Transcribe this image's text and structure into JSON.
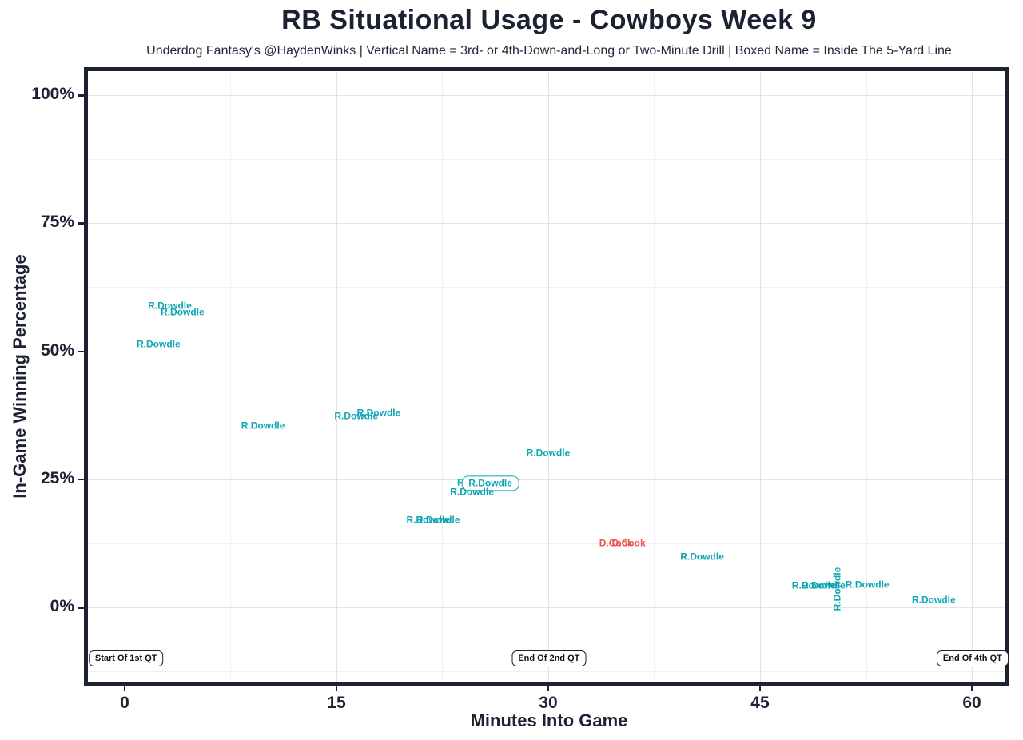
{
  "chart_data": {
    "type": "scatter",
    "title": "RB Situational Usage - Cowboys Week 9",
    "subtitle": "Underdog Fantasy's @HaydenWinks | Vertical Name = 3rd- or 4th-Down-and-Long or Two-Minute Drill | Boxed Name = Inside The 5-Yard Line",
    "xlabel": "Minutes Into Game",
    "ylabel": "In-Game Winning Percentage",
    "legend_notes": {
      "vertical_name_meaning": "3rd- or 4th-Down-and-Long or Two-Minute Drill",
      "boxed_name_meaning": "Inside The 5-Yard Line"
    },
    "colors": {
      "teal": "#0fa6b4",
      "red": "#ee544d",
      "axis": "#1d2233"
    },
    "x_axis": {
      "min": -2.6,
      "max": 62.32,
      "major_ticks": [
        {
          "value": 0,
          "label": "0"
        },
        {
          "value": 15,
          "label": "15"
        },
        {
          "value": 30,
          "label": "30"
        },
        {
          "value": 45,
          "label": "45"
        },
        {
          "value": 60,
          "label": "60"
        }
      ],
      "minor_ticks": [
        7.5,
        22.5,
        37.5,
        52.5
      ]
    },
    "y_axis": {
      "min": -14.5,
      "max": 104.7,
      "major_ticks": [
        {
          "value": 0,
          "label": "0%"
        },
        {
          "value": 25,
          "label": "25%"
        },
        {
          "value": 50,
          "label": "50%"
        },
        {
          "value": 75,
          "label": "75%"
        },
        {
          "value": 100,
          "label": "100%"
        }
      ],
      "minor_ticks": [
        -12.5,
        12.5,
        37.5,
        62.5,
        87.5
      ]
    },
    "points": [
      {
        "label": "R.Dowdle",
        "x": 3.2,
        "y": 58.8,
        "color": "teal",
        "style": "plain"
      },
      {
        "label": "R.Dowdle",
        "x": 4.1,
        "y": 57.6,
        "color": "teal",
        "style": "plain"
      },
      {
        "label": "R.Dowdle",
        "x": 2.4,
        "y": 51.3,
        "color": "teal",
        "style": "plain"
      },
      {
        "label": "R.Dowdle",
        "x": 9.8,
        "y": 35.4,
        "color": "teal",
        "style": "plain"
      },
      {
        "label": "R.Dowdle",
        "x": 16.4,
        "y": 37.3,
        "color": "teal",
        "style": "plain"
      },
      {
        "label": "R.Dowdle",
        "x": 18.0,
        "y": 37.9,
        "color": "teal",
        "style": "plain"
      },
      {
        "label": "R.Dowdle",
        "x": 30.0,
        "y": 30.1,
        "color": "teal",
        "style": "plain"
      },
      {
        "label": "R.Dowdle",
        "x": 25.1,
        "y": 24.3,
        "color": "teal",
        "style": "plain"
      },
      {
        "label": "R.Dowdle",
        "x": 25.9,
        "y": 24.2,
        "color": "teal",
        "style": "boxed"
      },
      {
        "label": "R.Dowdle",
        "x": 24.6,
        "y": 22.5,
        "color": "teal",
        "style": "plain"
      },
      {
        "label": "R.Dowdle",
        "x": 21.5,
        "y": 17.0,
        "color": "teal",
        "style": "plain"
      },
      {
        "label": "R.Dowdle",
        "x": 22.2,
        "y": 17.0,
        "color": "teal",
        "style": "plain"
      },
      {
        "label": "D.Cook",
        "x": 34.8,
        "y": 12.5,
        "color": "red",
        "style": "plain"
      },
      {
        "label": "D.Cook",
        "x": 35.7,
        "y": 12.5,
        "color": "red",
        "style": "plain"
      },
      {
        "label": "R.Dowdle",
        "x": 40.9,
        "y": 9.8,
        "color": "teal",
        "style": "plain"
      },
      {
        "label": "R.Dowdle",
        "x": 50.5,
        "y": 3.6,
        "color": "teal",
        "style": "vertical"
      },
      {
        "label": "R.Dowdle",
        "x": 48.8,
        "y": 4.2,
        "color": "teal",
        "style": "plain"
      },
      {
        "label": "R.Dowdle",
        "x": 49.5,
        "y": 4.2,
        "color": "teal",
        "style": "plain"
      },
      {
        "label": "R.Dowdle",
        "x": 52.6,
        "y": 4.4,
        "color": "teal",
        "style": "plain"
      },
      {
        "label": "R.Dowdle",
        "x": 57.3,
        "y": 1.4,
        "color": "teal",
        "style": "plain"
      }
    ],
    "annotations": [
      {
        "label": "Start Of 1st QT",
        "x": 0.1,
        "y": -10.0
      },
      {
        "label": "End Of 2nd QT",
        "x": 30.05,
        "y": -10.0
      },
      {
        "label": "End Of 4th QT",
        "x": 60.05,
        "y": -10.0
      }
    ]
  }
}
